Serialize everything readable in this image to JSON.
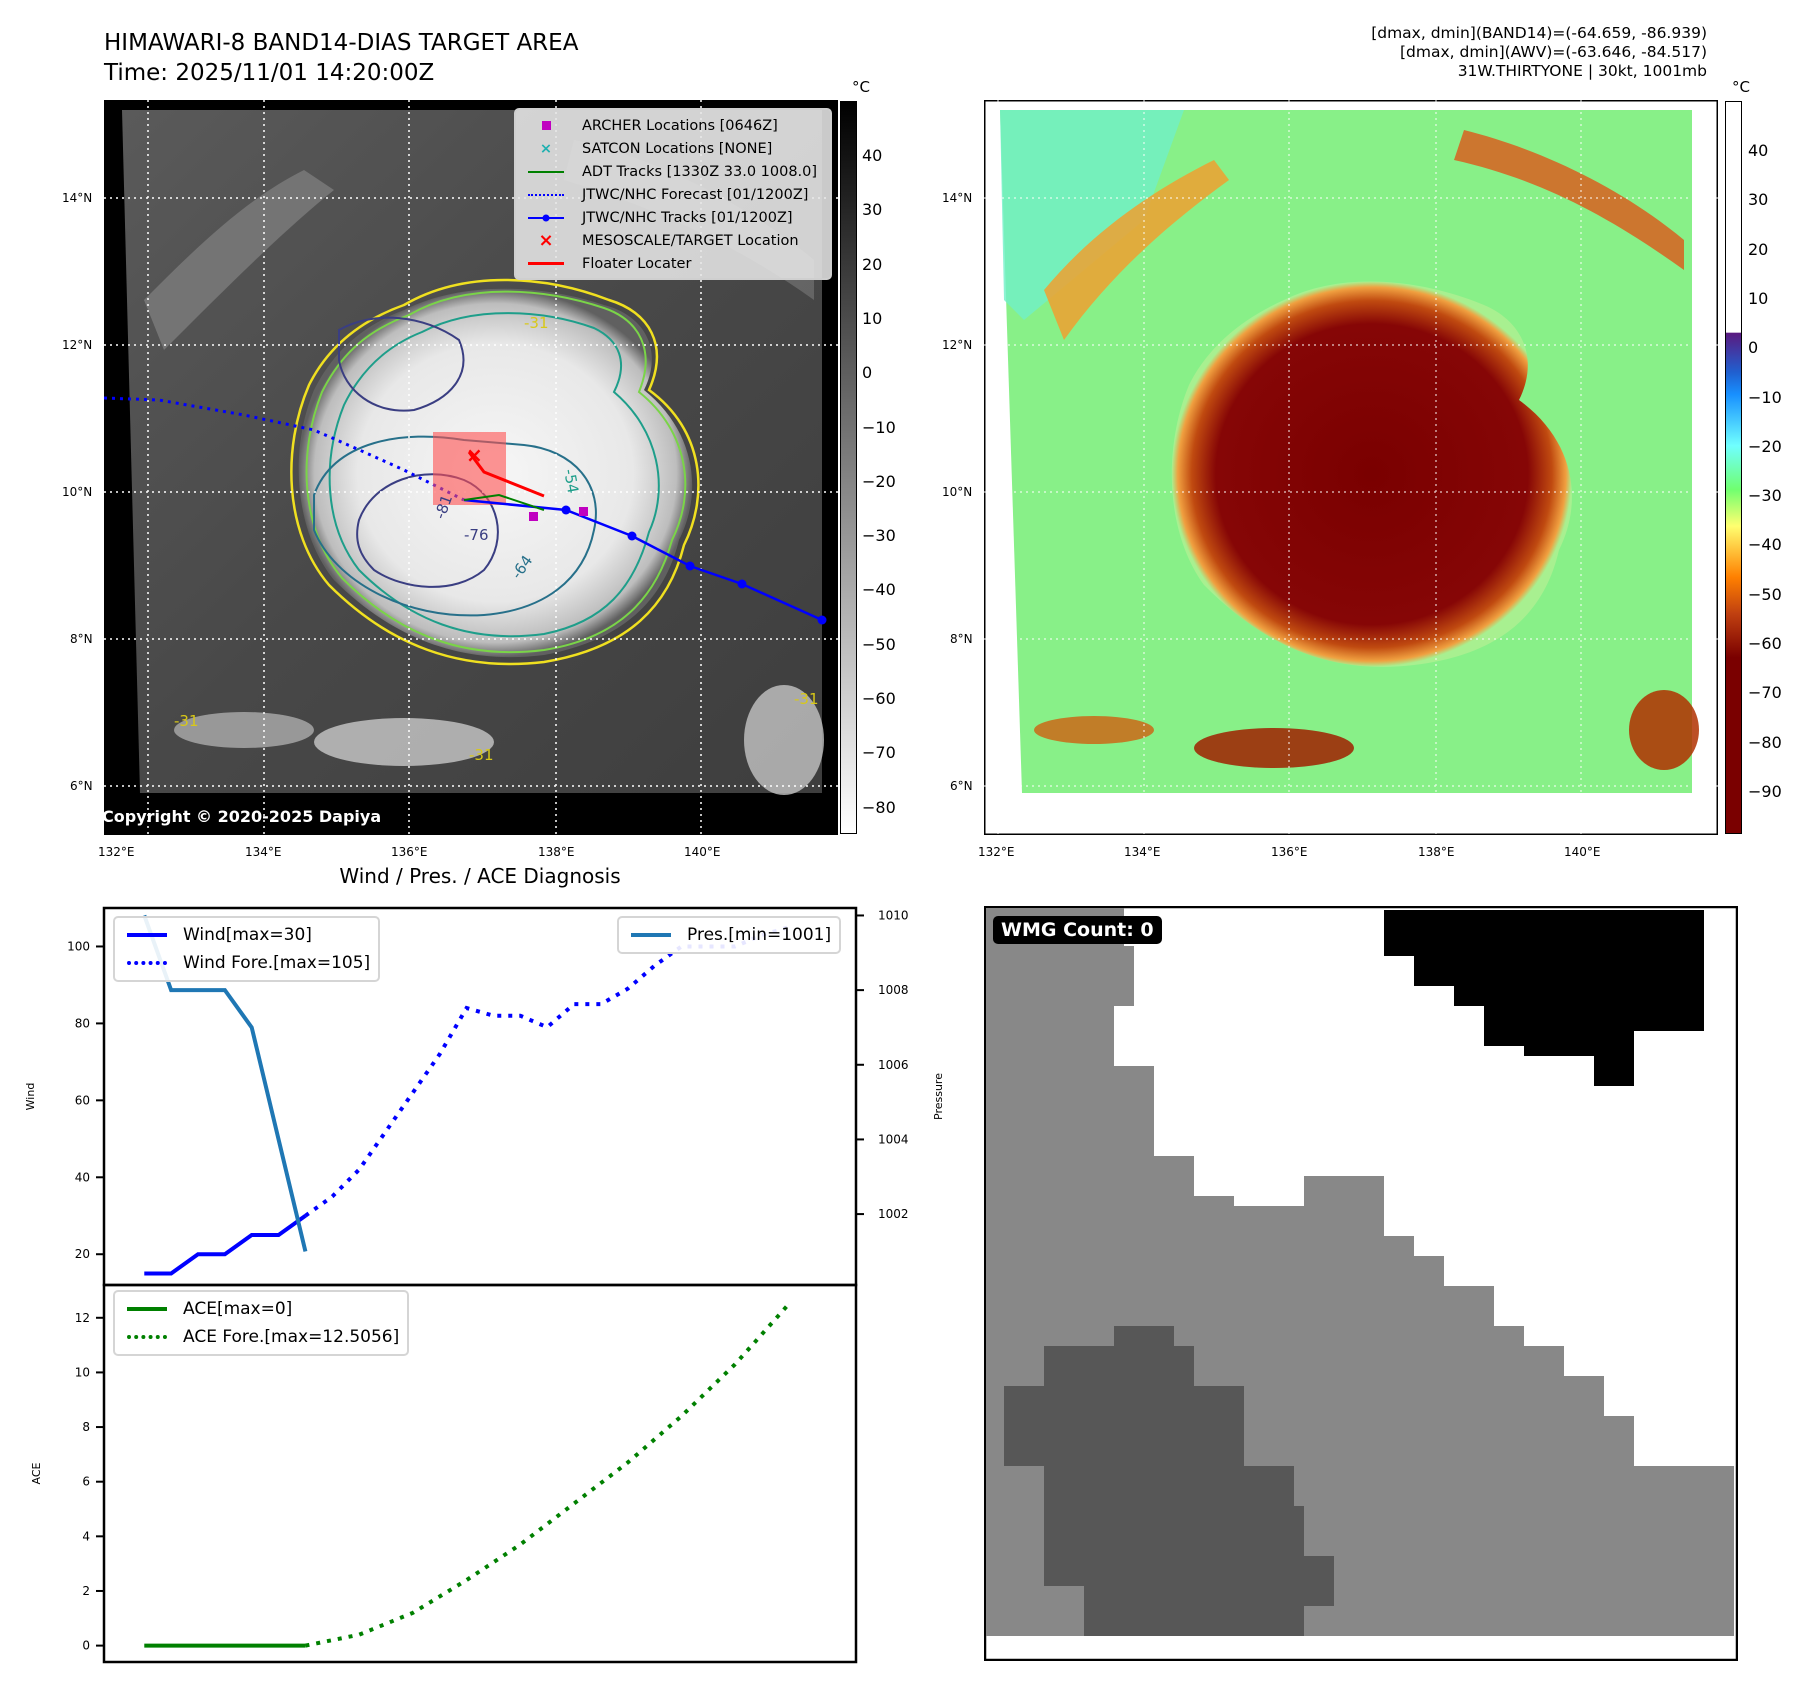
{
  "header": {
    "title_line1": "HIMAWARI-8 BAND14-DIAS TARGET AREA",
    "title_line2": "Time: 2025/11/01 14:20:00Z",
    "stats_line1": "[dmax, dmin](BAND14)=(-64.659, -86.939)",
    "stats_line2": "[dmax, dmin](AWV)=(-63.646, -84.517)",
    "stats_line3": "31W.THIRTYONE | 30kt, 1001mb"
  },
  "map": {
    "lat_ticks": [
      "14°N",
      "12°N",
      "10°N",
      "8°N",
      "6°N"
    ],
    "lon_ticks": [
      "132°E",
      "134°E",
      "136°E",
      "138°E",
      "140°E"
    ],
    "copyright": "Copyright © 2020-2025 Dapiya",
    "contour_labels": [
      "-31",
      "-31",
      "-31",
      "-31",
      "-54",
      "-64",
      "-76",
      "-81"
    ],
    "legend": [
      {
        "label": "ARCHER Locations [0646Z]",
        "symbol": "square",
        "color": "#c000c0"
      },
      {
        "label": "SATCON Locations [NONE]",
        "symbol": "x",
        "color": "#20b0b0"
      },
      {
        "label": "ADT Tracks [1330Z 33.0 1008.0]",
        "symbol": "line",
        "color": "#008000"
      },
      {
        "label": "JTWC/NHC Forecast [01/1200Z]",
        "symbol": "dotted",
        "color": "#0000ff"
      },
      {
        "label": "JTWC/NHC Tracks [01/1200Z]",
        "symbol": "line-dot",
        "color": "#0000ff"
      },
      {
        "label": "MESOSCALE/TARGET Location",
        "symbol": "x",
        "color": "#ff0000"
      },
      {
        "label": "Floater Locater",
        "symbol": "line",
        "color": "#ff0000"
      }
    ]
  },
  "colorbar_gray": {
    "unit": "°C",
    "ticks": [
      "40",
      "30",
      "20",
      "10",
      "0",
      "−10",
      "−20",
      "−30",
      "−40",
      "−50",
      "−60",
      "−70",
      "−80"
    ]
  },
  "colorbar_color": {
    "unit": "°C",
    "ticks": [
      "40",
      "30",
      "20",
      "10",
      "0",
      "−10",
      "−20",
      "−30",
      "−40",
      "−50",
      "−60",
      "−70",
      "−80",
      "−90"
    ]
  },
  "diagnosis": {
    "title": "Wind / Pres. / ACE Diagnosis",
    "wind_ylabel": "Wind",
    "pres_ylabel": "Pressure",
    "ace_ylabel": "ACE",
    "wind_legend": [
      "Wind[max=30]",
      "Wind Fore.[max=105]"
    ],
    "pres_legend": "Pres.[min=1001]",
    "ace_legend": [
      "ACE[max=0]",
      "ACE Fore.[max=12.5056]"
    ]
  },
  "wmg": {
    "badge": "WMG Count: 0"
  },
  "colors": {
    "wind": "#0000ff",
    "pressure": "#1f77b4",
    "ace": "#008000"
  },
  "chart_data": [
    {
      "type": "line",
      "title": "Wind / Pres. / ACE Diagnosis",
      "ylabel": "Wind",
      "ylim": [
        12,
        110
      ],
      "yticks": [
        "20",
        "40",
        "60",
        "80",
        "100"
      ],
      "x": [
        0,
        1,
        2,
        3,
        4,
        5,
        6,
        7,
        8,
        9,
        10,
        11,
        12,
        13,
        14,
        15,
        16,
        17,
        18,
        19,
        20,
        21,
        22,
        23,
        24
      ],
      "series": [
        {
          "name": "Wind[max=30]",
          "style": "solid",
          "x": [
            0,
            1,
            2,
            3,
            4,
            5,
            6
          ],
          "values": [
            15,
            15,
            20,
            20,
            25,
            25,
            30
          ]
        },
        {
          "name": "Wind Fore.[max=105]",
          "style": "dotted",
          "x": [
            6,
            7,
            8,
            9,
            10,
            11,
            12,
            13,
            14,
            15,
            16,
            17,
            18,
            19,
            20,
            21,
            22,
            23,
            24
          ],
          "values": [
            30,
            35,
            42,
            52,
            62,
            72,
            84,
            82,
            82,
            79,
            85,
            85,
            89,
            95,
            100,
            100,
            100,
            103,
            105
          ]
        }
      ]
    },
    {
      "type": "line",
      "ylabel": "Pressure",
      "ylim": [
        1000.1,
        1010.2
      ],
      "yticks": [
        "1002",
        "1004",
        "1006",
        "1008",
        "1010"
      ],
      "series": [
        {
          "name": "Pres.[min=1001]",
          "style": "solid",
          "x": [
            0,
            1,
            2,
            3,
            4,
            5,
            6
          ],
          "values": [
            1010,
            1008,
            1008,
            1008,
            1007,
            1004,
            1001
          ]
        }
      ]
    },
    {
      "type": "line",
      "ylabel": "ACE",
      "ylim": [
        -0.6,
        13.2
      ],
      "yticks": [
        "0",
        "2",
        "4",
        "6",
        "8",
        "10",
        "12"
      ],
      "series": [
        {
          "name": "ACE[max=0]",
          "style": "solid",
          "x": [
            0,
            6
          ],
          "values": [
            0,
            0
          ]
        },
        {
          "name": "ACE Fore.[max=12.5056]",
          "style": "dotted",
          "x": [
            6,
            8,
            10,
            12,
            14,
            16,
            18,
            20,
            22,
            24
          ],
          "values": [
            0,
            0.4,
            1.2,
            2.4,
            3.7,
            5.2,
            6.7,
            8.4,
            10.3,
            12.5056
          ]
        }
      ]
    }
  ]
}
